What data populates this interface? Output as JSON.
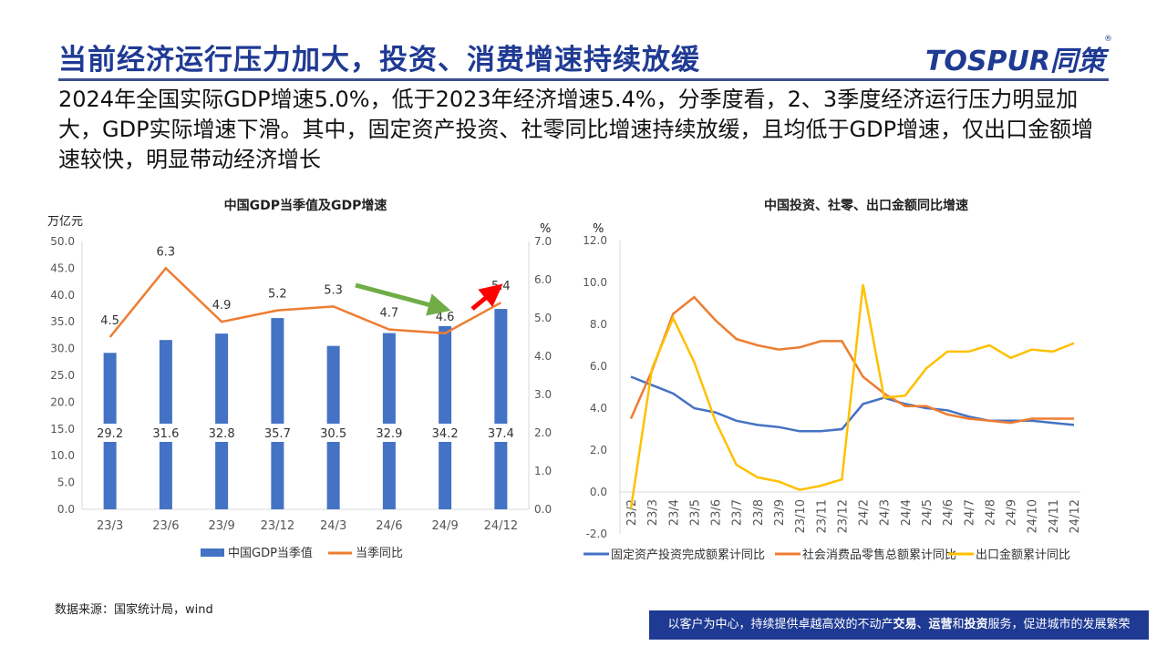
{
  "header": {
    "title": "当前经济运行压力加大，投资、消费增速持续放缓",
    "logo": "TOSPUR同策"
  },
  "summary": "2024年全国实际GDP增速5.0%，低于2023年经济增速5.4%，分季度看，2、3季度经济运行压力明显加大，GDP实际增速下滑。其中，固定资产投资、社零同比增速持续放缓，且均低于GDP增速，仅出口金额增速较快，明显带动经济增长",
  "source": "数据来源：国家统计局，wind",
  "footer": {
    "pre": "以客户为中心，持续提供卓越高效的不动产",
    "b1": "交易",
    "s1": "、",
    "b2": "运营",
    "s2": "和",
    "b3": "投资",
    "post": "服务，促进城市的发展繁荣"
  },
  "colors": {
    "brand": "#1f3a93",
    "bar": "#4472c4",
    "orange": "#ed7d31",
    "yellow": "#ffc000",
    "green_arrow": "#70ad47",
    "red_arrow": "#ff0000"
  },
  "chart_data": [
    {
      "type": "bar+line",
      "title": "中国GDP当季值及GDP增速",
      "ylabel": "万亿元",
      "y2label": "%",
      "categories": [
        "23/3",
        "23/6",
        "23/9",
        "23/12",
        "24/3",
        "24/6",
        "24/9",
        "24/12"
      ],
      "ylim": [
        0,
        50
      ],
      "yticks": [
        "0.0",
        "5.0",
        "10.0",
        "15.0",
        "20.0",
        "25.0",
        "30.0",
        "35.0",
        "40.0",
        "45.0",
        "50.0"
      ],
      "y2lim": [
        0,
        7
      ],
      "y2ticks": [
        "0.0",
        "1.0",
        "2.0",
        "3.0",
        "4.0",
        "5.0",
        "6.0",
        "7.0"
      ],
      "series": [
        {
          "name": "中国GDP当季值",
          "type": "bar",
          "values": [
            29.2,
            31.6,
            32.8,
            35.7,
            30.5,
            32.9,
            34.2,
            37.4
          ]
        },
        {
          "name": "当季同比",
          "type": "line",
          "axis": "right",
          "values": [
            4.5,
            6.3,
            4.9,
            5.2,
            5.3,
            4.7,
            4.6,
            5.4
          ]
        }
      ],
      "legend": "bottom",
      "annotations": [
        "green arrow down toward 24/9",
        "red arrow up toward 24/12"
      ]
    },
    {
      "type": "line",
      "title": "中国投资、社零、出口金额同比增速",
      "ylabel": "%",
      "categories": [
        "23/2",
        "23/3",
        "23/4",
        "23/5",
        "23/6",
        "23/7",
        "23/8",
        "23/9",
        "23/10",
        "23/11",
        "23/12",
        "24/2",
        "24/3",
        "24/4",
        "24/5",
        "24/6",
        "24/7",
        "24/8",
        "24/9",
        "24/10",
        "24/11",
        "24/12"
      ],
      "ylim": [
        -2,
        12
      ],
      "yticks": [
        "-2.0",
        "0.0",
        "2.0",
        "4.0",
        "6.0",
        "8.0",
        "10.0",
        "12.0"
      ],
      "series": [
        {
          "name": "固定资产投资完成额累计同比",
          "values": [
            5.5,
            5.1,
            4.7,
            4.0,
            3.8,
            3.4,
            3.2,
            3.1,
            2.9,
            2.9,
            3.0,
            4.2,
            4.5,
            4.2,
            4.0,
            3.9,
            3.6,
            3.4,
            3.4,
            3.4,
            3.3,
            3.2
          ]
        },
        {
          "name": "社会消费品零售总额累计同比",
          "values": [
            3.5,
            5.8,
            8.5,
            9.3,
            8.2,
            7.3,
            7.0,
            6.8,
            6.9,
            7.2,
            7.2,
            5.5,
            4.7,
            4.1,
            4.1,
            3.7,
            3.5,
            3.4,
            3.3,
            3.5,
            3.5,
            3.5
          ]
        },
        {
          "name": "出口金额累计同比",
          "values": [
            -0.8,
            5.9,
            8.3,
            6.2,
            3.4,
            1.3,
            0.7,
            0.5,
            0.1,
            0.3,
            0.6,
            9.9,
            4.5,
            4.6,
            5.9,
            6.7,
            6.7,
            7.0,
            6.4,
            6.8,
            6.7,
            7.1
          ]
        }
      ],
      "legend": "bottom"
    }
  ]
}
